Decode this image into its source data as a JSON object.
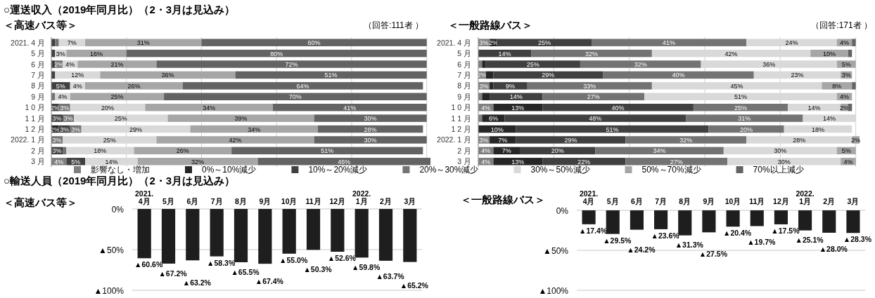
{
  "chart_data": [
    {
      "type": "bar",
      "orientation": "horizontal",
      "stacked": true,
      "title": "○運送収入（2019年同月比）（2・3月は見込み）",
      "subtitle": "＜高速バス等＞",
      "annotations": [
        "（回答:111者 ）"
      ],
      "categories": [
        "2021. 4 月",
        "5 月",
        "6 月",
        "7 月",
        "8 月",
        "9 月",
        "1 0 月",
        "1 1 月",
        "1 2 月",
        "2022. 1 月",
        "2 月",
        "3 月"
      ],
      "xlim": [
        0,
        101
      ],
      "xticks": [
        {
          "value": 0,
          "label": null
        },
        {
          "value": 20,
          "label": null
        },
        {
          "value": 40,
          "label": null
        },
        {
          "value": 60,
          "label": null
        },
        {
          "value": 80,
          "label": null
        },
        {
          "value": 100,
          "label": null
        }
      ],
      "grid": "x",
      "legend": "bottom",
      "series": [
        {
          "name": "影響なし・増加",
          "color": "#7f7f7f",
          "values": [
            0,
            0,
            0,
            0,
            0,
            0,
            0,
            0,
            0,
            0,
            0,
            4
          ],
          "value_labels": [
            null,
            null,
            null,
            null,
            null,
            null,
            null,
            null,
            null,
            null,
            null,
            "4%"
          ]
        },
        {
          "name": "0%～10%減少",
          "color": "#262626",
          "values": [
            0,
            0,
            0,
            0,
            0,
            0,
            0,
            0,
            2,
            0,
            0,
            0
          ],
          "value_labels": [
            null,
            null,
            null,
            null,
            null,
            null,
            null,
            null,
            "2%",
            null,
            null,
            null
          ]
        },
        {
          "name": "10%～20%減少",
          "color": "#404040",
          "values": [
            1,
            1,
            1,
            1,
            5,
            0,
            2,
            3,
            3,
            0,
            3,
            5
          ],
          "value_labels": [
            null,
            null,
            null,
            null,
            "5%",
            null,
            "2%",
            "3%",
            "3%",
            null,
            "3%",
            "5%"
          ]
        },
        {
          "name": "20%～30%減少",
          "color": "#737373",
          "values": [
            1,
            0,
            2,
            0,
            0,
            1,
            3,
            3,
            3,
            3,
            1,
            0
          ],
          "value_labels": [
            null,
            null,
            "2%",
            null,
            null,
            null,
            "3%",
            "3%",
            "3%",
            "3%",
            null,
            null
          ]
        },
        {
          "name": "30%～50%減少",
          "color": "#d9d9d9",
          "values": [
            7,
            3,
            4,
            12,
            4,
            4,
            20,
            25,
            29,
            25,
            18,
            14
          ],
          "value_labels": [
            "7%",
            "3%",
            "4%",
            "12%",
            "4%",
            "4%",
            "20%",
            "25%",
            "29%",
            "25%",
            "18%",
            "14%"
          ]
        },
        {
          "name": "50%～70%減少",
          "color": "#a6a6a6",
          "values": [
            31,
            16,
            21,
            36,
            26,
            25,
            34,
            39,
            34,
            42,
            26,
            32
          ],
          "value_labels": [
            "31%",
            "16%",
            "21%",
            "36%",
            "26%",
            "25%",
            "34%",
            "39%",
            "34%",
            "42%",
            "26%",
            "32%"
          ]
        },
        {
          "name": "70%以上減少",
          "color": "#636363",
          "values": [
            60,
            80,
            72,
            51,
            64,
            70,
            41,
            30,
            28,
            30,
            51,
            46
          ],
          "value_labels": [
            "60%",
            "80%",
            "72%",
            "51%",
            "64%",
            "70%",
            "41%",
            "30%",
            "28%",
            "30%",
            "51%",
            "46%"
          ]
        }
      ]
    },
    {
      "type": "bar",
      "orientation": "horizontal",
      "stacked": true,
      "title": "＜一般路線バス＞",
      "annotations": [
        "（回答:171者 ）"
      ],
      "categories": [
        "2021. 4 月",
        "5 月",
        "6 月",
        "7 月",
        "8 月",
        "9 月",
        "1 0 月",
        "1 1 月",
        "1 2 月",
        "2022. 1 月",
        "2 月",
        "3 月"
      ],
      "xlim": [
        0,
        101
      ],
      "xticks": [
        {
          "value": 0,
          "label": null
        },
        {
          "value": 20,
          "label": null
        },
        {
          "value": 40,
          "label": null
        },
        {
          "value": 60,
          "label": null
        },
        {
          "value": 80,
          "label": null
        },
        {
          "value": 100,
          "label": null
        }
      ],
      "grid": "x",
      "series": [
        {
          "color": "#7f7f7f",
          "values": [
            3,
            0,
            1,
            2,
            3,
            1,
            4,
            1,
            0,
            3,
            4,
            4
          ],
          "value_labels": [
            "3%",
            null,
            null,
            "2%",
            "3%",
            null,
            "4%",
            null,
            null,
            "3%",
            "4%",
            "4%"
          ]
        },
        {
          "color": "#262626",
          "values": [
            2,
            0,
            1,
            2,
            1,
            2,
            13,
            6,
            10,
            7,
            7,
            13
          ],
          "value_labels": [
            "2%",
            null,
            null,
            null,
            null,
            null,
            "13%",
            "6%",
            "10%",
            "7%",
            "7%",
            "13%"
          ]
        },
        {
          "color": "#404040",
          "values": [
            25,
            14,
            25,
            29,
            9,
            14,
            40,
            48,
            51,
            29,
            20,
            22
          ],
          "value_labels": [
            "25%",
            "14%",
            "25%",
            "29%",
            "9%",
            "14%",
            "40%",
            "48%",
            "51%",
            "29%",
            "20%",
            "22%"
          ]
        },
        {
          "color": "#737373",
          "values": [
            41,
            32,
            32,
            40,
            33,
            27,
            25,
            31,
            20,
            32,
            34,
            27
          ],
          "value_labels": [
            "41%",
            "32%",
            "32%",
            "40%",
            "33%",
            "27%",
            "25%",
            "31%",
            "20%",
            "32%",
            "34%",
            "27%"
          ]
        },
        {
          "color": "#d9d9d9",
          "values": [
            24,
            42,
            36,
            23,
            45,
            51,
            14,
            14,
            18,
            28,
            30,
            30
          ],
          "value_labels": [
            "24%",
            "42%",
            "36%",
            "23%",
            "45%",
            "51%",
            "14%",
            "14%",
            "18%",
            "28%",
            "30%",
            "30%"
          ]
        },
        {
          "color": "#a6a6a6",
          "values": [
            4,
            10,
            5,
            3,
            8,
            4,
            2,
            0,
            0,
            2,
            5,
            4
          ],
          "value_labels": [
            "4%",
            "10%",
            "5%",
            "3%",
            "8%",
            "4%",
            "2%",
            null,
            null,
            "2%",
            "5%",
            "4%"
          ]
        },
        {
          "color": "#636363",
          "values": [
            1,
            1,
            0,
            0,
            1,
            0,
            1,
            0,
            0,
            0,
            0,
            0
          ],
          "value_labels": [
            null,
            null,
            null,
            null,
            null,
            null,
            null,
            null,
            null,
            null,
            null,
            null
          ]
        }
      ]
    },
    {
      "type": "bar",
      "title": "○輸送人員（2019年同月比）（2・3月は見込み）",
      "subtitle": "＜高速バス等＞",
      "categories": [
        "2021. 4月",
        "5月",
        "6月",
        "7月",
        "8月",
        "9月",
        "10月",
        "11月",
        "12月",
        "2022.1月",
        "2月",
        "3月"
      ],
      "ylim": [
        100,
        0
      ],
      "yticks": [
        {
          "value": 0,
          "label": "0%"
        },
        {
          "value": 50,
          "label": "▲50%"
        },
        {
          "value": 100,
          "label": "▲100%"
        }
      ],
      "grid": "y",
      "series": [
        {
          "color": "#1e1e1e",
          "values": [
            60.6,
            67.2,
            63.2,
            58.3,
            65.5,
            67.4,
            55.0,
            50.3,
            52.6,
            59.8,
            63.7,
            65.2
          ],
          "value_labels": [
            "▲60.6%",
            "▲67.2%",
            "▲63.2%",
            "▲58.3%",
            "▲65.5%",
            "▲67.4%",
            "▲55.0%",
            "▲50.3%",
            "▲52.6%",
            "▲59.8%",
            "▲63.7%",
            "▲65.2%"
          ]
        }
      ]
    },
    {
      "type": "bar",
      "title": "＜一般路線バス＞",
      "categories": [
        "2021. 4月",
        "5月",
        "6月",
        "7月",
        "8月",
        "9月",
        "10月",
        "11月",
        "12月",
        "2022.1月",
        "2月",
        "3月"
      ],
      "ylim": [
        100,
        0
      ],
      "yticks": [
        {
          "value": 0,
          "label": "0%"
        },
        {
          "value": 50,
          "label": "▲50%"
        },
        {
          "value": 100,
          "label": "▲100%"
        }
      ],
      "grid": "y",
      "series": [
        {
          "color": "#1e1e1e",
          "values": [
            17.4,
            29.5,
            24.2,
            23.6,
            31.3,
            27.5,
            20.4,
            19.7,
            17.5,
            25.1,
            28.0,
            28.3
          ],
          "value_labels": [
            "▲17.4%",
            "▲29.5%",
            "▲24.2%",
            "▲23.6%",
            "▲31.3%",
            "▲27.5%",
            "▲20.4%",
            "▲19.7%",
            "▲17.5%",
            "▲25.1%",
            "▲28.0%",
            "▲28.3%"
          ]
        }
      ]
    }
  ]
}
